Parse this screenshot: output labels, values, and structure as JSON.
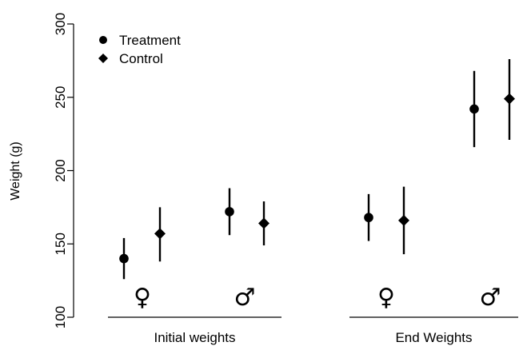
{
  "chart_data": {
    "type": "scatter",
    "ylabel": "Weight (g)",
    "ylim": [
      100,
      300
    ],
    "yticks": [
      100,
      150,
      200,
      250,
      300
    ],
    "groups": [
      {
        "label": "Initial weights",
        "subgroups": [
          {
            "symbol": "♀",
            "points": [
              {
                "series": "Treatment",
                "y": 140,
                "lo": 126,
                "hi": 154
              },
              {
                "series": "Control",
                "y": 157,
                "lo": 138,
                "hi": 175
              }
            ]
          },
          {
            "symbol": "♂",
            "points": [
              {
                "series": "Treatment",
                "y": 172,
                "lo": 156,
                "hi": 188
              },
              {
                "series": "Control",
                "y": 164,
                "lo": 149,
                "hi": 179
              }
            ]
          }
        ]
      },
      {
        "label": "End Weights",
        "subgroups": [
          {
            "symbol": "♀",
            "points": [
              {
                "series": "Treatment",
                "y": 168,
                "lo": 152,
                "hi": 184
              },
              {
                "series": "Control",
                "y": 166,
                "lo": 143,
                "hi": 189
              }
            ]
          },
          {
            "symbol": "♂",
            "points": [
              {
                "series": "Treatment",
                "y": 242,
                "lo": 216,
                "hi": 268
              },
              {
                "series": "Control",
                "y": 249,
                "lo": 221,
                "hi": 276
              }
            ]
          }
        ]
      }
    ],
    "legend": {
      "placement": "top-left",
      "entries": [
        {
          "name": "Treatment",
          "marker": "circle"
        },
        {
          "name": "Control",
          "marker": "diamond"
        }
      ]
    },
    "grid": false
  }
}
